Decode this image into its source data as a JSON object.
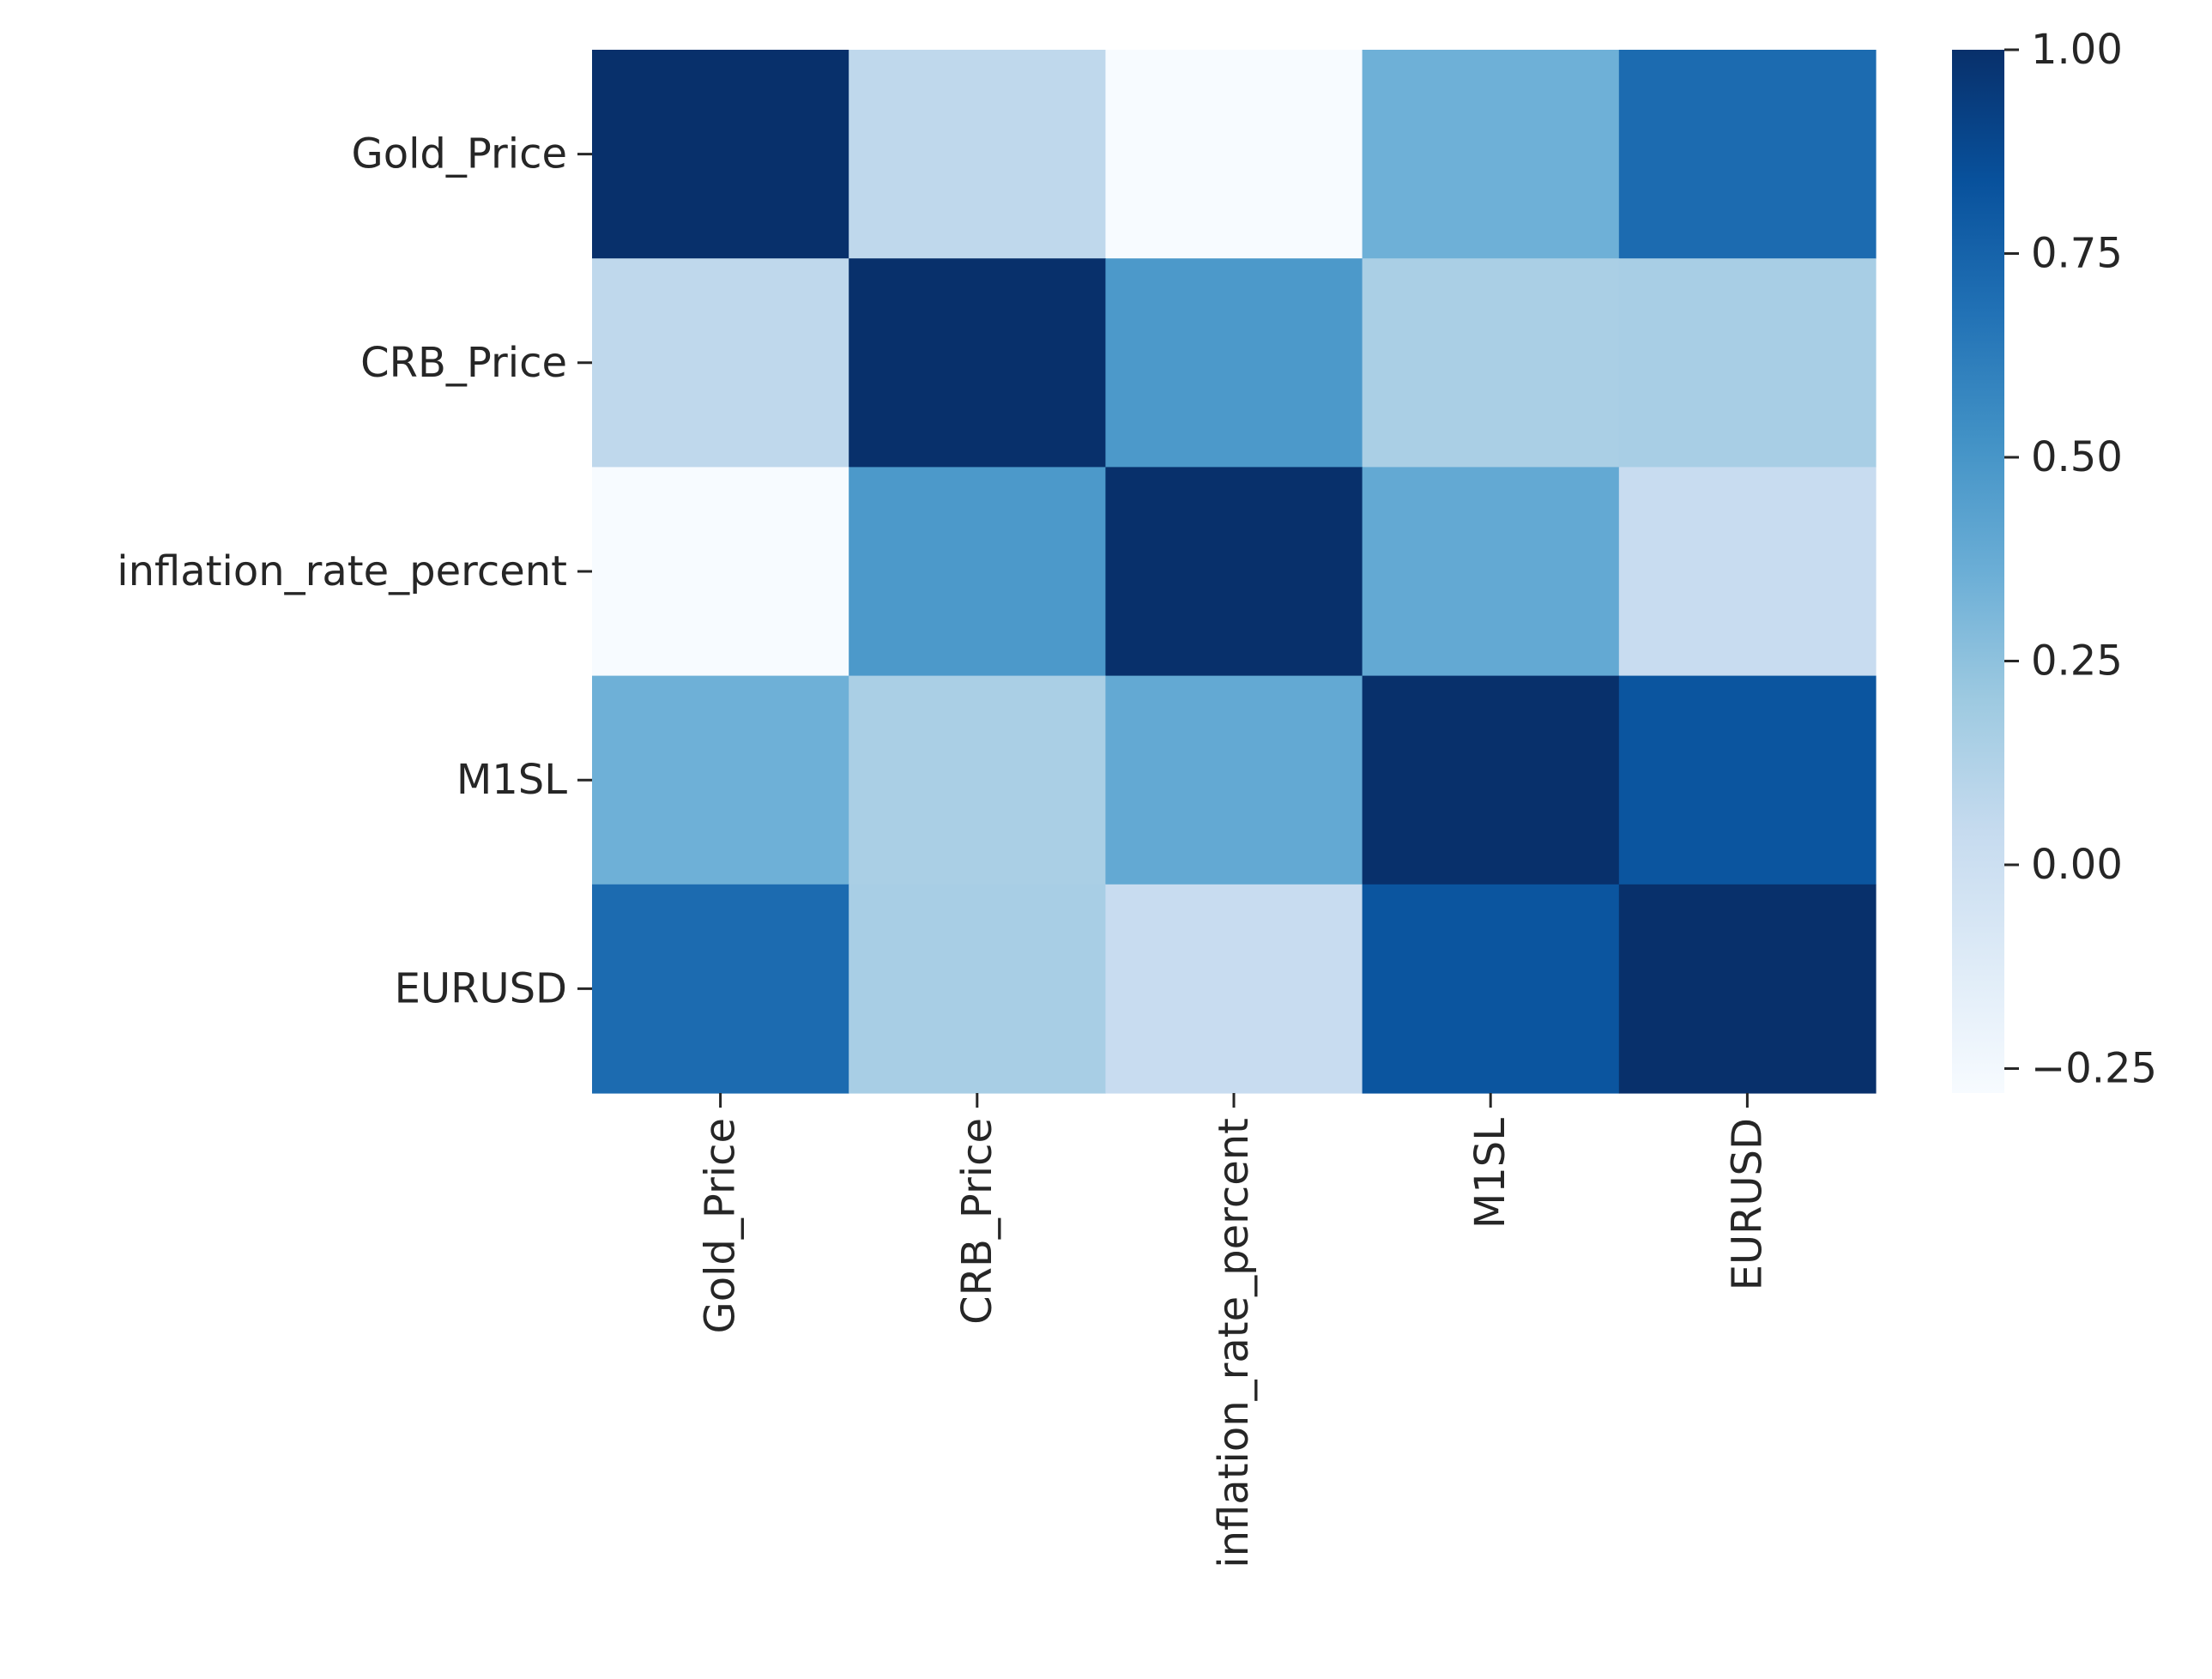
{
  "chart_data": {
    "type": "heatmap",
    "title": "",
    "xlabel": "",
    "ylabel": "",
    "rows": [
      "Gold_Price",
      "CRB_Price",
      "inflation_rate_percent",
      "M1SL",
      "EURUSD"
    ],
    "columns": [
      "Gold_Price",
      "CRB_Price",
      "inflation_rate_percent",
      "M1SL",
      "EURUSD"
    ],
    "values": [
      [
        1.0,
        0.07,
        -0.28,
        0.35,
        0.71
      ],
      [
        0.07,
        1.0,
        0.48,
        0.15,
        0.16
      ],
      [
        -0.28,
        0.48,
        1.0,
        0.39,
        0.03
      ],
      [
        0.35,
        0.15,
        0.39,
        1.0,
        0.82
      ],
      [
        0.71,
        0.16,
        0.03,
        0.82,
        1.0
      ]
    ],
    "colormap": "Blues",
    "colorbar": {
      "vmin": -0.28,
      "vmax": 1.0,
      "ticks": [
        1.0,
        0.75,
        0.5,
        0.25,
        0.0,
        -0.25
      ],
      "tick_labels": [
        "1.00",
        "0.75",
        "0.50",
        "0.25",
        "0.00",
        "−0.25"
      ],
      "placement": "right"
    },
    "grid": false
  }
}
